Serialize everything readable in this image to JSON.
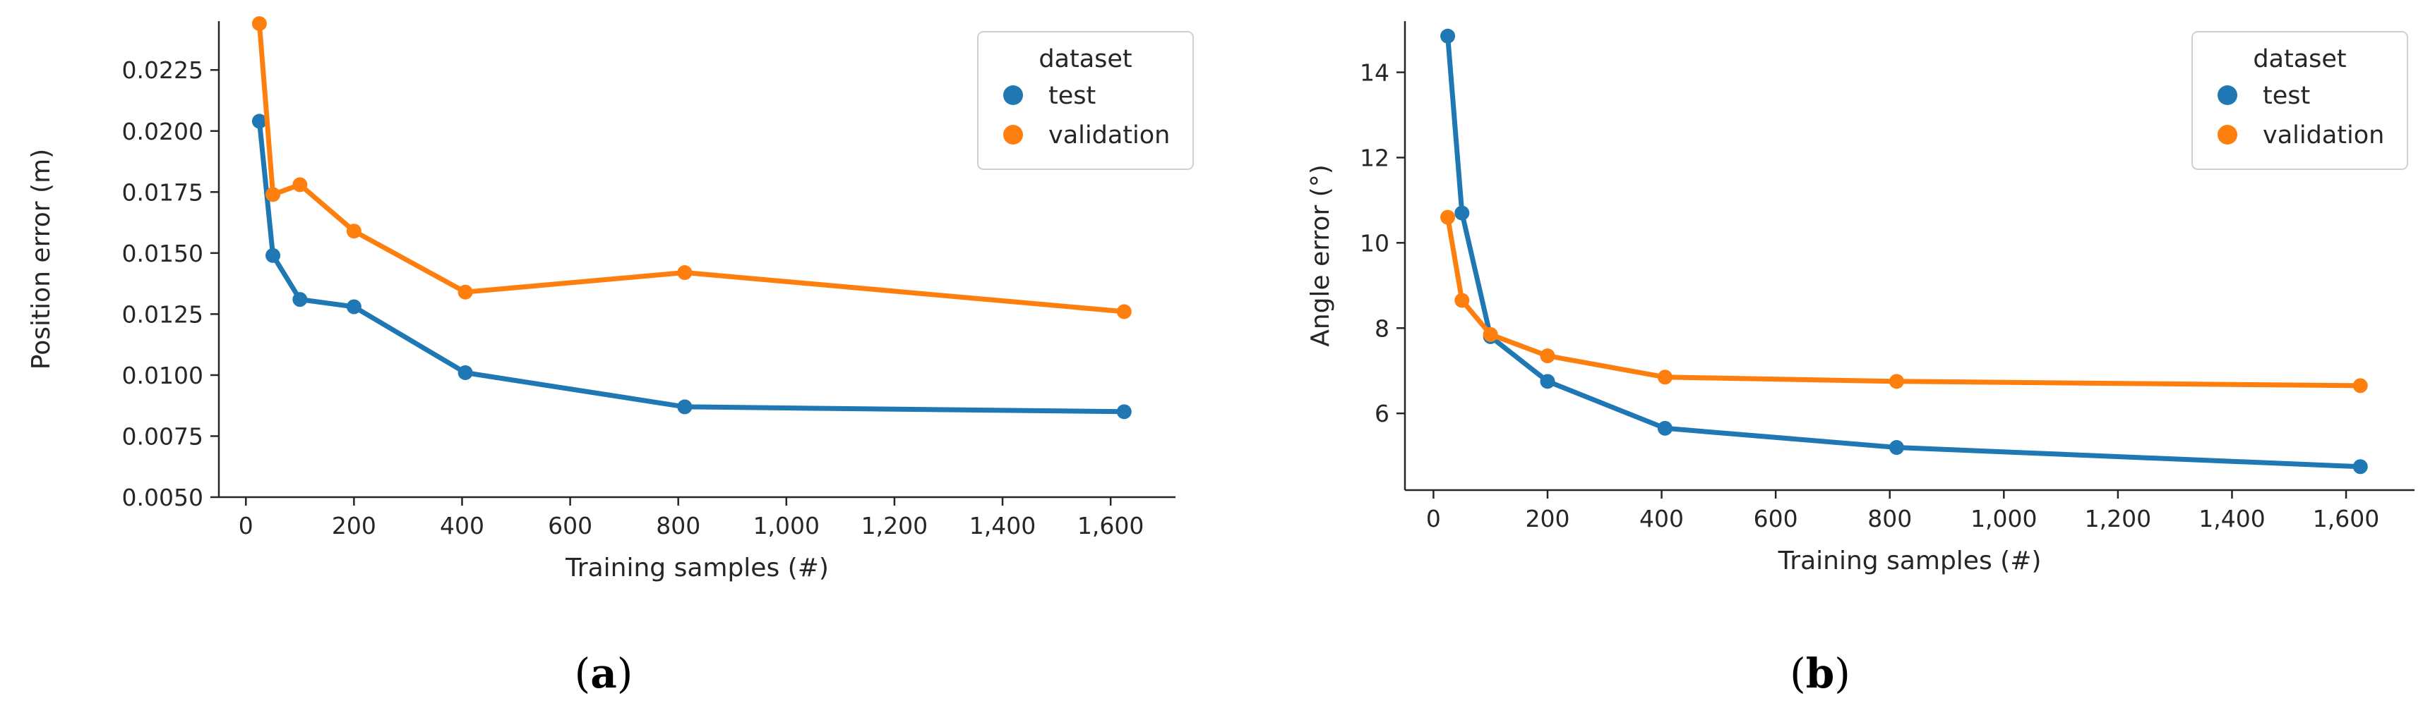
{
  "chart_data": [
    {
      "type": "line",
      "caption_letter": "a",
      "xlabel": "Training samples (#)",
      "ylabel": "Position error (m)",
      "xlim": [
        -50,
        1720
      ],
      "ylim": [
        0.005,
        0.0245
      ],
      "xticks": [
        0,
        200,
        400,
        600,
        800,
        1000,
        1200,
        1400,
        1600
      ],
      "xtick_labels": [
        "0",
        "200",
        "400",
        "600",
        "800",
        "1,000",
        "1,200",
        "1,400",
        "1,600"
      ],
      "yticks": [
        0.005,
        0.0075,
        0.01,
        0.0125,
        0.015,
        0.0175,
        0.02,
        0.0225
      ],
      "ytick_labels": [
        "0.0050",
        "0.0075",
        "0.0100",
        "0.0125",
        "0.0150",
        "0.0175",
        "0.0200",
        "0.0225"
      ],
      "legend": {
        "title": "dataset",
        "position": "top-right"
      },
      "series": [
        {
          "name": "test",
          "color": "#1f77b4",
          "x": [
            25,
            50,
            100,
            200,
            406,
            812,
            1625
          ],
          "y": [
            0.0204,
            0.0149,
            0.0131,
            0.0128,
            0.0101,
            0.0087,
            0.0085
          ]
        },
        {
          "name": "validation",
          "color": "#ff7f0e",
          "x": [
            25,
            50,
            100,
            200,
            406,
            812,
            1625
          ],
          "y": [
            0.0244,
            0.0174,
            0.0178,
            0.0159,
            0.0134,
            0.0142,
            0.0126
          ]
        }
      ]
    },
    {
      "type": "line",
      "caption_letter": "b",
      "xlabel": "Training samples (#)",
      "ylabel": "Angle error (°)",
      "xlim": [
        -50,
        1720
      ],
      "ylim": [
        4.2,
        15.2
      ],
      "xticks": [
        0,
        200,
        400,
        600,
        800,
        1000,
        1200,
        1400,
        1600
      ],
      "xtick_labels": [
        "0",
        "200",
        "400",
        "600",
        "800",
        "1,000",
        "1,200",
        "1,400",
        "1,600"
      ],
      "yticks": [
        6,
        8,
        10,
        12,
        14
      ],
      "ytick_labels": [
        "6",
        "8",
        "10",
        "12",
        "14"
      ],
      "legend": {
        "title": "dataset",
        "position": "top-right"
      },
      "series": [
        {
          "name": "test",
          "color": "#1f77b4",
          "x": [
            25,
            50,
            100,
            200,
            406,
            812,
            1625
          ],
          "y": [
            14.85,
            10.7,
            7.8,
            6.75,
            5.65,
            5.2,
            4.75
          ]
        },
        {
          "name": "validation",
          "color": "#ff7f0e",
          "x": [
            25,
            50,
            100,
            200,
            406,
            812,
            1625
          ],
          "y": [
            10.6,
            8.65,
            7.85,
            7.35,
            6.85,
            6.75,
            6.65
          ]
        }
      ]
    }
  ]
}
